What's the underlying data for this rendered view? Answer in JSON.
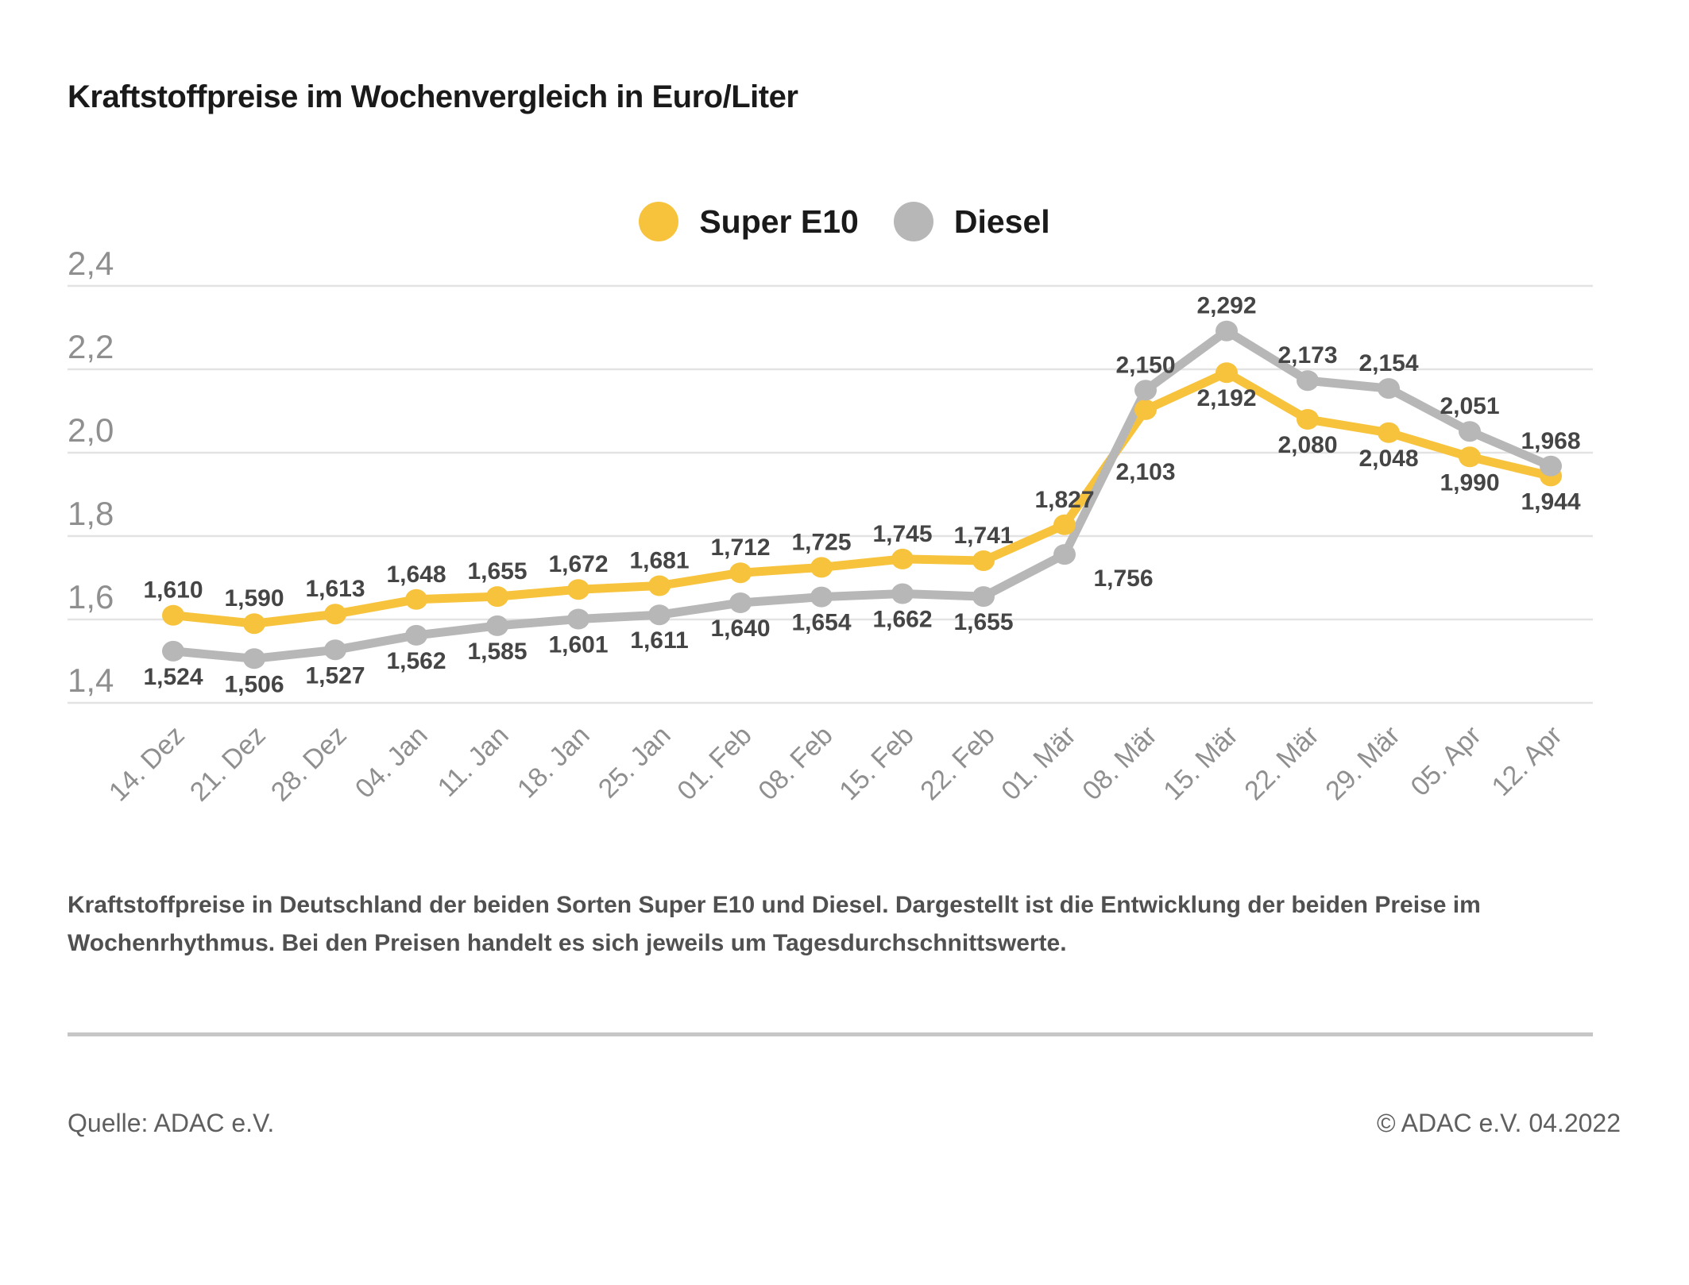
{
  "title": "Kraftstoffpreise im Wochenvergleich in Euro/Liter",
  "legend": {
    "items": [
      {
        "label": "Super E10",
        "color": "#F8C33C"
      },
      {
        "label": "Diesel",
        "color": "#B7B7B7"
      }
    ]
  },
  "chart_data": {
    "type": "line",
    "title": "Kraftstoffpreise im Wochenvergleich in Euro/Liter",
    "unit": "Euro/Liter",
    "grid": true,
    "legend_position": "top-center",
    "categories": [
      "14. Dez",
      "21. Dez",
      "28. Dez",
      "04. Jan",
      "11. Jan",
      "18. Jan",
      "25. Jan",
      "01. Feb",
      "08. Feb",
      "15. Feb",
      "22. Feb",
      "01. Mär",
      "08. Mär",
      "15. Mär",
      "22. Mär",
      "29. Mär",
      "05. Apr",
      "12. Apr"
    ],
    "y_axis": {
      "min": 1.4,
      "max": 2.4,
      "tick_values": [
        1.4,
        1.6,
        1.8,
        2.0,
        2.2,
        2.4
      ],
      "tick_labels": [
        "1,4",
        "1,6",
        "1,8",
        "2,0",
        "2,2",
        "2,4"
      ]
    },
    "series": [
      {
        "name": "Super E10",
        "color": "#F8C33C",
        "values": [
          1.61,
          1.59,
          1.613,
          1.648,
          1.655,
          1.672,
          1.681,
          1.712,
          1.725,
          1.745,
          1.741,
          1.827,
          2.103,
          2.192,
          2.08,
          2.048,
          1.99,
          1.944
        ],
        "point_labels": [
          "1,610",
          "1,590",
          "1,613",
          "1,648",
          "1,655",
          "1,672",
          "1,681",
          "1,712",
          "1,725",
          "1,745",
          "1,741",
          "1,827",
          "2,103",
          "2,192",
          "2,080",
          "2,048",
          "1,990",
          "1,944"
        ],
        "label_side": [
          "above",
          "above",
          "above",
          "above",
          "above",
          "above",
          "above",
          "above",
          "above",
          "above",
          "above",
          "above",
          "below-far",
          "below",
          "below",
          "below",
          "below",
          "below"
        ]
      },
      {
        "name": "Diesel",
        "color": "#B7B7B7",
        "values": [
          1.524,
          1.506,
          1.527,
          1.562,
          1.585,
          1.601,
          1.611,
          1.64,
          1.654,
          1.662,
          1.655,
          1.756,
          2.15,
          2.292,
          2.173,
          2.154,
          2.051,
          1.968
        ],
        "point_labels": [
          "1,524",
          "1,506",
          "1,527",
          "1,562",
          "1,585",
          "1,601",
          "1,611",
          "1,640",
          "1,654",
          "1,662",
          "1,655",
          "1,756",
          "2,150",
          "2,292",
          "2,173",
          "2,154",
          "2,051",
          "1,968"
        ],
        "label_side": [
          "below",
          "below",
          "below",
          "below",
          "below",
          "below",
          "below",
          "below",
          "below",
          "below",
          "below",
          "below-right",
          "above",
          "above",
          "above",
          "above",
          "above",
          "above"
        ]
      }
    ]
  },
  "description": {
    "line1": "Kraftstoffpreise in Deutschland der beiden Sorten Super E10 und Diesel. Dargestellt ist die Entwicklung der beiden Preise im",
    "line2": "Wochenrhythmus. Bei den Preisen handelt es sich jeweils um Tagesdurchschnittswerte."
  },
  "footer": {
    "source": "Quelle: ADAC e.V.",
    "copyright": "© ADAC e.V. 04.2022"
  }
}
